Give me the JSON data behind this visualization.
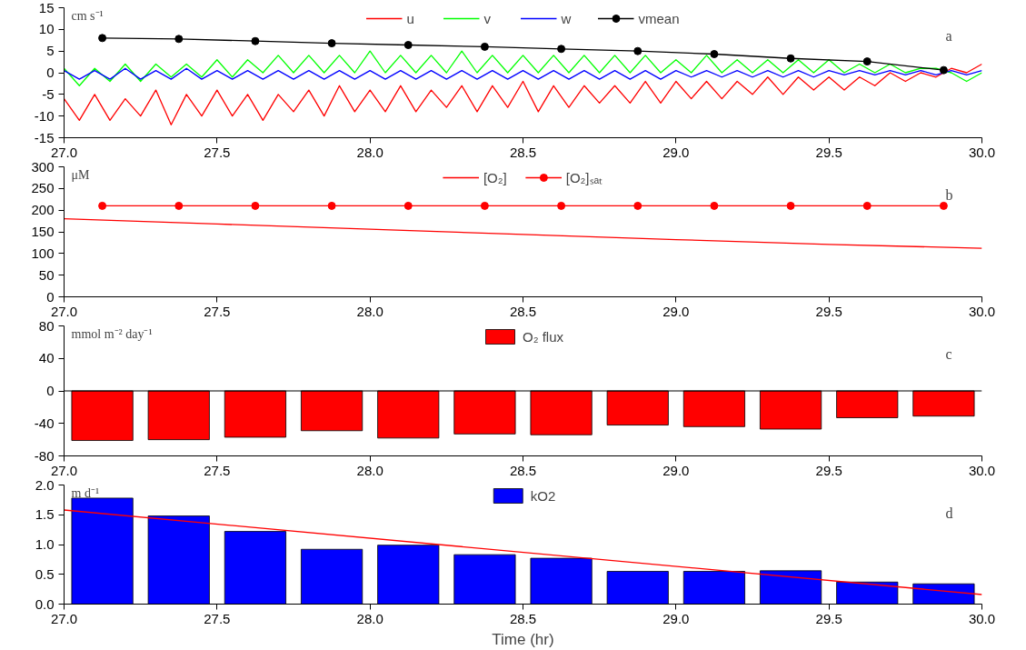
{
  "chart_data": [
    {
      "type": "line",
      "ylabel": "cm s⁻¹",
      "annotations": [
        "a"
      ],
      "legend": "top",
      "grid": false,
      "marker": "none",
      "xlim": [
        27.0,
        30.0
      ],
      "xticks": [
        {
          "value": 27,
          "label": "27.0"
        },
        27.5,
        {
          "value": 28,
          "label": "28.0"
        },
        28.5,
        {
          "value": 29,
          "label": "29.0"
        },
        29.5,
        {
          "value": 30,
          "label": "30.0"
        }
      ],
      "ylim": [
        -15,
        15
      ],
      "yticks": [
        -15,
        -10,
        -5,
        0,
        5,
        10,
        15
      ],
      "x": [
        27.0,
        27.05,
        27.1,
        27.15,
        27.2,
        27.25,
        27.3,
        27.35,
        27.4,
        27.45,
        27.5,
        27.55,
        27.6,
        27.65,
        27.7,
        27.75,
        27.8,
        27.85,
        27.9,
        27.95,
        28.0,
        28.05,
        28.1,
        28.15,
        28.2,
        28.25,
        28.3,
        28.35,
        28.4,
        28.45,
        28.5,
        28.55,
        28.6,
        28.65,
        28.7,
        28.75,
        28.8,
        28.85,
        28.9,
        28.95,
        29.0,
        29.05,
        29.1,
        29.15,
        29.2,
        29.25,
        29.3,
        29.35,
        29.4,
        29.45,
        29.5,
        29.55,
        29.6,
        29.65,
        29.7,
        29.75,
        29.8,
        29.85,
        29.9,
        29.95,
        30.0
      ],
      "series": [
        {
          "name": "u",
          "color": "#ff0000",
          "values": [
            -6,
            -11,
            -5,
            -11,
            -6,
            -10,
            -4,
            -12,
            -5,
            -10,
            -4,
            -10,
            -5,
            -11,
            -5,
            -9,
            -4,
            -10,
            -3,
            -9,
            -4,
            -9,
            -3,
            -9,
            -4,
            -8,
            -3,
            -9,
            -3,
            -8,
            -2,
            -9,
            -3,
            -8,
            -3,
            -7,
            -3,
            -7,
            -2,
            -7,
            -2,
            -6,
            -2,
            -6,
            -2,
            -5,
            -1,
            -5,
            -1,
            -4,
            -1,
            -4,
            -1,
            -3,
            0,
            -2,
            0,
            -1,
            1,
            0,
            2
          ]
        },
        {
          "name": "v",
          "color": "#00ff00",
          "values": [
            1,
            -3,
            1,
            -2,
            2,
            -2,
            2,
            -1,
            2,
            -1,
            3,
            -1,
            3,
            0,
            4,
            0,
            4,
            0,
            4,
            0,
            5,
            0,
            4,
            0,
            4,
            0,
            5,
            0,
            4,
            0,
            4,
            0,
            4,
            0,
            4,
            0,
            4,
            0,
            4,
            0,
            3,
            0,
            4,
            0,
            3,
            0,
            3,
            0,
            3,
            0,
            3,
            0,
            2,
            0,
            2,
            0,
            1,
            1,
            0,
            -2,
            0
          ]
        },
        {
          "name": "w",
          "color": "#0000ff",
          "values": [
            0.5,
            -1.5,
            0.5,
            -1.5,
            1,
            -1.5,
            0.5,
            -1.5,
            1,
            -1.5,
            0.5,
            -1.5,
            0.5,
            -1.5,
            0.5,
            -1.5,
            0.5,
            -1.5,
            0.5,
            -1.5,
            0.5,
            -1.5,
            0.5,
            -1.5,
            0.5,
            -1.5,
            0.5,
            -1.5,
            0.5,
            -1.5,
            0.5,
            -1.5,
            0.5,
            -1.5,
            0.5,
            -1.5,
            0.5,
            -1.5,
            0.5,
            -1.5,
            0.5,
            -1,
            0.5,
            -1,
            0.5,
            -1,
            0.5,
            -1,
            0.5,
            -1,
            0.5,
            -0.5,
            0.5,
            -0.5,
            0.5,
            -0.5,
            0.5,
            -0.5,
            0.5,
            -0.5,
            0.5
          ]
        },
        {
          "name": "vmean",
          "color": "#000000",
          "marker": "circle",
          "x": [
            27.125,
            27.375,
            27.625,
            27.875,
            28.125,
            28.375,
            28.625,
            28.875,
            29.125,
            29.375,
            29.625,
            29.875
          ],
          "values": [
            8,
            7.8,
            7.3,
            6.8,
            6.4,
            6,
            5.5,
            5,
            4.3,
            3.3,
            2.6,
            0.6
          ]
        }
      ]
    },
    {
      "type": "line",
      "ylabel": "μM",
      "annotations": [
        "b"
      ],
      "legend": "top",
      "grid": false,
      "marker": "none",
      "xlim": [
        27.0,
        30.0
      ],
      "xticks": [
        {
          "value": 27,
          "label": "27.0"
        },
        27.5,
        {
          "value": 28,
          "label": "28.0"
        },
        28.5,
        {
          "value": 29,
          "label": "29.0"
        },
        29.5,
        {
          "value": 30,
          "label": "30.0"
        }
      ],
      "ylim": [
        0,
        300
      ],
      "yticks": [
        0,
        50,
        100,
        150,
        200,
        250,
        300
      ],
      "series": [
        {
          "name": "[O₂]",
          "color": "#ff0000",
          "x": [
            27.0,
            27.5,
            28.0,
            28.5,
            29.0,
            29.5,
            30.0
          ],
          "values": [
            180,
            168,
            156,
            144,
            132,
            121,
            112
          ]
        },
        {
          "name": "[O₂]ₛₐₜ",
          "color": "#ff0000",
          "marker": "circle",
          "x": [
            27.125,
            27.375,
            27.625,
            27.875,
            28.125,
            28.375,
            28.625,
            28.875,
            29.125,
            29.375,
            29.625,
            29.875
          ],
          "values": [
            210,
            210,
            210,
            210,
            210,
            210,
            210,
            210,
            210,
            210,
            210,
            210
          ]
        }
      ]
    },
    {
      "type": "bar",
      "ylabel": "mmol m⁻² day⁻¹",
      "annotations": [
        "c"
      ],
      "legend": "top",
      "grid": false,
      "xlim": [
        27.0,
        30.0
      ],
      "xticks": [
        {
          "value": 27,
          "label": "27.0"
        },
        27.5,
        {
          "value": 28,
          "label": "28.0"
        },
        28.5,
        {
          "value": 29,
          "label": "29.0"
        },
        29.5,
        {
          "value": 30,
          "label": "30.0"
        }
      ],
      "ylim": [
        -80,
        80
      ],
      "yticks": [
        -80,
        -40,
        0,
        40,
        80
      ],
      "ref_lines": [
        {
          "axis": "y",
          "value": 0,
          "color": "#000000"
        }
      ],
      "x": [
        27.125,
        27.375,
        27.625,
        27.875,
        28.125,
        28.375,
        28.625,
        28.875,
        29.125,
        29.375,
        29.625,
        29.875
      ],
      "series": [
        {
          "name": "O₂ flux",
          "color": "#ff0000",
          "values": [
            -61,
            -60,
            -57,
            -49,
            -58,
            -53,
            -54,
            -42,
            -44,
            -47,
            -33,
            -31
          ]
        }
      ]
    },
    {
      "type": "bar",
      "ylabel": "m d⁻¹",
      "xlabel": "Time (hr)",
      "annotations": [
        "d"
      ],
      "legend": "top",
      "grid": false,
      "xlim": [
        27.0,
        30.0
      ],
      "xticks": [
        {
          "value": 27,
          "label": "27.0"
        },
        27.5,
        {
          "value": 28,
          "label": "28.0"
        },
        28.5,
        {
          "value": 29,
          "label": "29.0"
        },
        29.5,
        {
          "value": 30,
          "label": "30.0"
        }
      ],
      "ylim": [
        0,
        2.0
      ],
      "yticks": [
        {
          "value": 0,
          "label": "0.0"
        },
        0.5,
        {
          "value": 1,
          "label": "1.0"
        },
        1.5,
        {
          "value": 2,
          "label": "2.0"
        }
      ],
      "x": [
        27.125,
        27.375,
        27.625,
        27.875,
        28.125,
        28.375,
        28.625,
        28.875,
        29.125,
        29.375,
        29.625,
        29.875
      ],
      "series": [
        {
          "name": "kO2",
          "color": "#0000ff",
          "values": [
            1.78,
            1.48,
            1.22,
            0.92,
            0.99,
            0.83,
            0.77,
            0.55,
            0.55,
            0.56,
            0.37,
            0.34
          ]
        },
        {
          "type": "line",
          "color": "#ff0000",
          "x": [
            27.0,
            30.0
          ],
          "values": [
            1.58,
            0.16
          ]
        }
      ]
    }
  ]
}
